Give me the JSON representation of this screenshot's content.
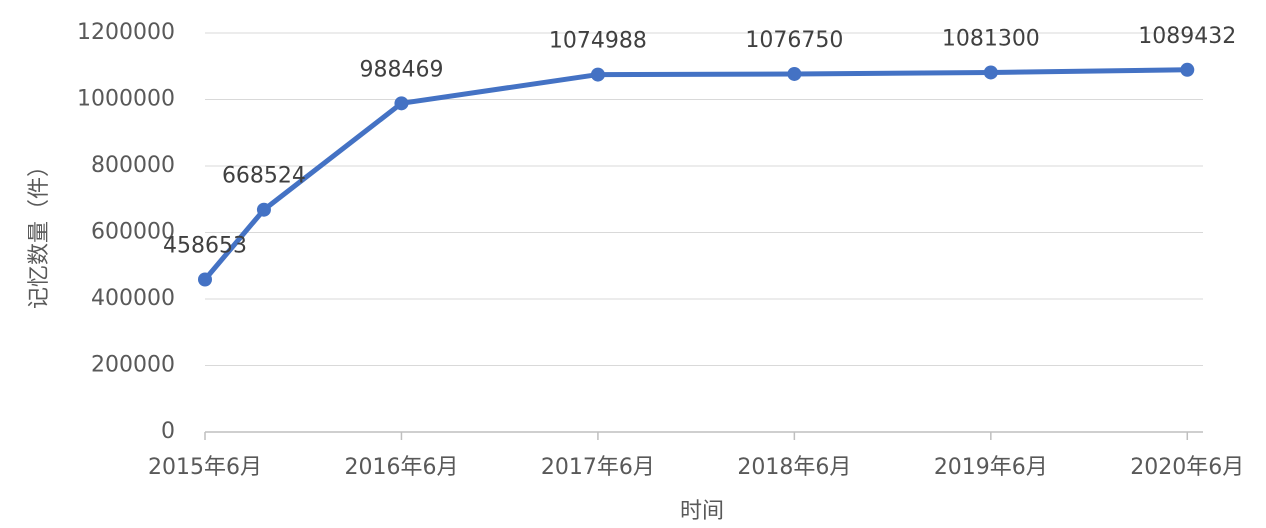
{
  "chart_data": {
    "type": "line",
    "y_label": "记忆数量（件）",
    "x_label": "时间",
    "x": [
      2015.5,
      2015.8,
      2016.5,
      2017.5,
      2018.5,
      2019.5,
      2020.5
    ],
    "series": [
      {
        "name": "记忆数量",
        "color": "#4472c4",
        "values": [
          458653,
          668524,
          988469,
          1074988,
          1076750,
          1081300,
          1089432
        ]
      }
    ],
    "xlim": [
      2015.5,
      2020.58
    ],
    "xticks": [
      {
        "value": 2015.5,
        "label": "2015年6月"
      },
      {
        "value": 2016.5,
        "label": "2016年6月"
      },
      {
        "value": 2017.5,
        "label": "2017年6月"
      },
      {
        "value": 2018.5,
        "label": "2018年6月"
      },
      {
        "value": 2019.5,
        "label": "2019年6月"
      },
      {
        "value": 2020.5,
        "label": "2020年6月"
      }
    ],
    "ylim": [
      0,
      1200000
    ],
    "yticks": [
      0,
      200000,
      400000,
      600000,
      800000,
      1000000,
      1200000
    ],
    "grid": true
  }
}
